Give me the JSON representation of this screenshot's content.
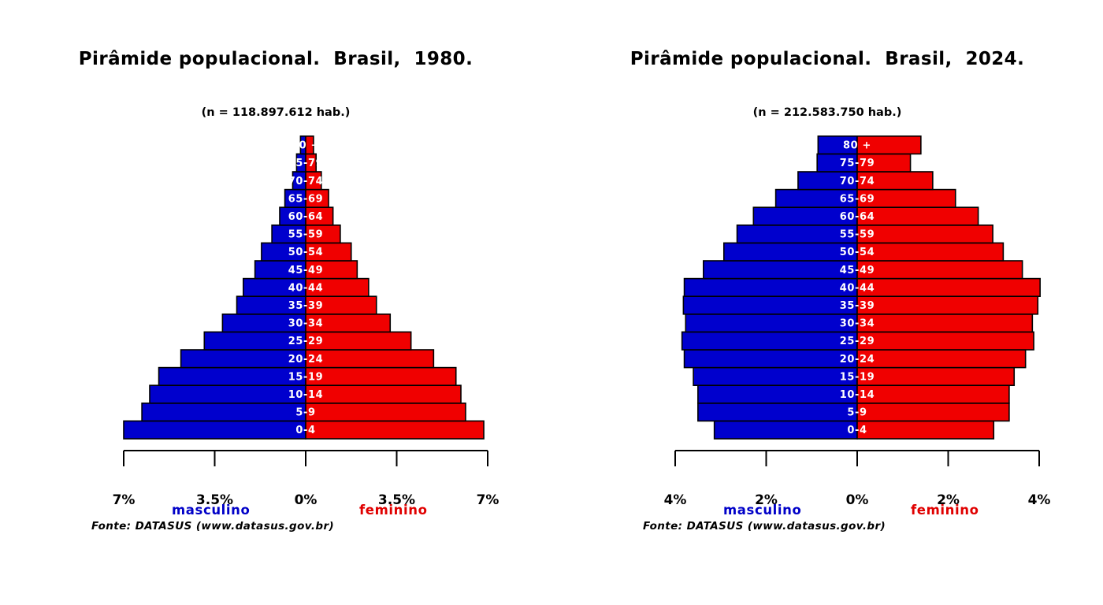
{
  "colors": {
    "male": "#0000cd",
    "female": "#f00000",
    "outline": "#000000",
    "agelabel": "#ffffff"
  },
  "chart_data": [
    {
      "type": "bar",
      "orientation": "horizontal",
      "layout": "population-pyramid",
      "title": "Pirâmide populacional.  Brasil,  1980.",
      "subtitle": "(n = 118.897.612 hab.)",
      "categories": [
        "0-4",
        "5-9",
        "10-14",
        "15-19",
        "20-24",
        "25-29",
        "30-34",
        "35-39",
        "40-44",
        "45-49",
        "50-54",
        "55-59",
        "60-64",
        "65-69",
        "70-74",
        "75-79",
        "80 +"
      ],
      "series": [
        {
          "name": "masculino",
          "values": [
            7.0,
            6.3,
            6.0,
            5.65,
            4.8,
            3.9,
            3.2,
            2.65,
            2.4,
            1.95,
            1.7,
            1.3,
            1.0,
            0.8,
            0.5,
            0.35,
            0.2
          ]
        },
        {
          "name": "feminino",
          "values": [
            6.85,
            6.15,
            5.97,
            5.78,
            4.92,
            4.05,
            3.25,
            2.72,
            2.42,
            1.98,
            1.75,
            1.33,
            1.05,
            0.88,
            0.6,
            0.4,
            0.3
          ]
        }
      ],
      "xlim": [
        -7,
        7
      ],
      "xticks": [
        -7,
        -3.5,
        0,
        3.5,
        7
      ],
      "xtick_labels": [
        "7%",
        "3.5%",
        "0%",
        "3.5%",
        "7%"
      ]
    },
    {
      "type": "bar",
      "orientation": "horizontal",
      "layout": "population-pyramid",
      "title": "Pirâmide populacional.  Brasil,  2024.",
      "subtitle": "(n = 212.583.750 hab.)",
      "categories": [
        "0-4",
        "5-9",
        "10-14",
        "15-19",
        "20-24",
        "25-29",
        "30-34",
        "35-39",
        "40-44",
        "45-49",
        "50-54",
        "55-59",
        "60-64",
        "65-69",
        "70-74",
        "75-79",
        "80 +"
      ],
      "series": [
        {
          "name": "masculino",
          "values": [
            3.14,
            3.5,
            3.5,
            3.6,
            3.8,
            3.85,
            3.77,
            3.82,
            3.8,
            3.38,
            2.93,
            2.64,
            2.28,
            1.79,
            1.3,
            0.88,
            0.86
          ]
        },
        {
          "name": "feminino",
          "values": [
            3.0,
            3.34,
            3.34,
            3.45,
            3.7,
            3.88,
            3.85,
            3.97,
            4.02,
            3.63,
            3.21,
            2.98,
            2.66,
            2.16,
            1.66,
            1.17,
            1.4
          ]
        }
      ],
      "xlim": [
        -4,
        4
      ],
      "xticks": [
        -4,
        -2,
        0,
        2,
        4
      ],
      "xtick_labels": [
        "4%",
        "2%",
        "0%",
        "2%",
        "4%"
      ]
    }
  ],
  "legend": {
    "male": "masculino",
    "female": "feminino"
  },
  "source": "Fonte: DATASUS (www.datasus.gov.br)"
}
